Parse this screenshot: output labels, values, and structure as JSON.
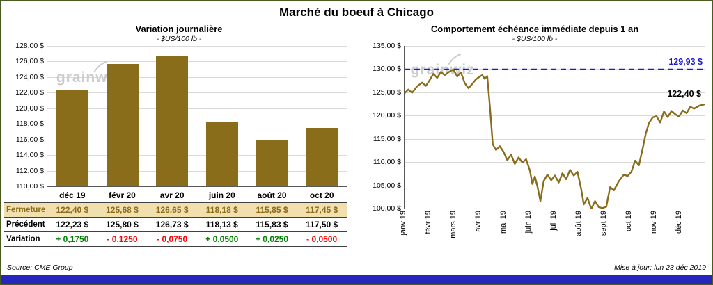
{
  "title": "Marché du boeuf à Chicago",
  "watermark": "grainwiz",
  "colors": {
    "bar": "#8a6d1b",
    "series": "#8a6d1b",
    "reference": "#1a1ad0",
    "positive": "#008000",
    "negative": "#ff0000",
    "fermeture_bg": "#f2dfae",
    "fermeture_text": "#8a6d1b",
    "footer_bar": "#2626be"
  },
  "footer": {
    "source": "Source: CME Group",
    "updated": "Mise à jour: lun 23 déc 2019"
  },
  "chart_data": [
    {
      "type": "bar",
      "title": "Variation journalière",
      "subtitle": "- $US/100 lb -",
      "categories": [
        "déc 19",
        "févr 20",
        "avr 20",
        "juin 20",
        "août 20",
        "oct 20"
      ],
      "values": [
        122.4,
        125.68,
        126.65,
        118.18,
        115.85,
        117.45
      ],
      "ylim": [
        110,
        128
      ],
      "ytick_step": 2,
      "grid": true,
      "table": {
        "rows": [
          {
            "label": "Fermeture",
            "values": [
              "122,40 $",
              "125,68 $",
              "126,65 $",
              "118,18 $",
              "115,85 $",
              "117,45 $"
            ]
          },
          {
            "label": "Précédent",
            "values": [
              "122,23 $",
              "125,80 $",
              "126,73 $",
              "118,13 $",
              "115,83 $",
              "117,50 $"
            ]
          },
          {
            "label": "Variation",
            "values": [
              "+ 0,1750",
              "- 0,1250",
              "- 0,0750",
              "+ 0,0500",
              "+ 0,0250",
              "- 0,0500"
            ]
          }
        ]
      }
    },
    {
      "type": "line",
      "title": "Comportement échéance immédiate depuis 1 an",
      "subtitle": "- $US/100 lb -",
      "x_labels": [
        "janv 19",
        "févr 19",
        "mars 19",
        "avr 19",
        "mai 19",
        "juin 19",
        "juil 19",
        "août 19",
        "sept 19",
        "oct 19",
        "nov 19",
        "déc 19"
      ],
      "ylim": [
        100,
        135
      ],
      "ytick_step": 5,
      "grid": true,
      "reference_line": {
        "value": 129.93,
        "label": "129,93 $"
      },
      "end_label": "122,40 $",
      "points": [
        [
          0,
          124.8
        ],
        [
          0.15,
          125.6
        ],
        [
          0.3,
          124.9
        ],
        [
          0.5,
          126.3
        ],
        [
          0.7,
          127.1
        ],
        [
          0.85,
          126.4
        ],
        [
          1.0,
          127.6
        ],
        [
          1.15,
          129.0
        ],
        [
          1.3,
          128.1
        ],
        [
          1.45,
          129.4
        ],
        [
          1.6,
          128.7
        ],
        [
          1.8,
          129.5
        ],
        [
          1.95,
          129.93
        ],
        [
          2.1,
          128.4
        ],
        [
          2.25,
          129.3
        ],
        [
          2.4,
          127.0
        ],
        [
          2.55,
          125.9
        ],
        [
          2.7,
          126.8
        ],
        [
          2.85,
          127.8
        ],
        [
          3.0,
          128.4
        ],
        [
          3.1,
          128.7
        ],
        [
          3.2,
          127.9
        ],
        [
          3.3,
          128.5
        ],
        [
          3.42,
          121.0
        ],
        [
          3.52,
          113.8
        ],
        [
          3.65,
          112.6
        ],
        [
          3.8,
          113.4
        ],
        [
          3.95,
          112.2
        ],
        [
          4.1,
          110.4
        ],
        [
          4.25,
          111.6
        ],
        [
          4.4,
          109.6
        ],
        [
          4.55,
          111.0
        ],
        [
          4.7,
          109.9
        ],
        [
          4.85,
          110.6
        ],
        [
          5.0,
          108.2
        ],
        [
          5.1,
          105.3
        ],
        [
          5.2,
          106.9
        ],
        [
          5.3,
          104.8
        ],
        [
          5.42,
          101.6
        ],
        [
          5.55,
          105.9
        ],
        [
          5.7,
          107.3
        ],
        [
          5.85,
          106.1
        ],
        [
          6.0,
          107.1
        ],
        [
          6.15,
          105.6
        ],
        [
          6.3,
          107.6
        ],
        [
          6.45,
          106.3
        ],
        [
          6.6,
          108.3
        ],
        [
          6.75,
          107.1
        ],
        [
          6.9,
          107.9
        ],
        [
          7.05,
          104.1
        ],
        [
          7.15,
          100.9
        ],
        [
          7.3,
          102.3
        ],
        [
          7.45,
          99.9
        ],
        [
          7.6,
          101.6
        ],
        [
          7.75,
          100.3
        ],
        [
          7.9,
          100.1
        ],
        [
          8.05,
          100.4
        ],
        [
          8.2,
          104.6
        ],
        [
          8.35,
          103.9
        ],
        [
          8.55,
          105.9
        ],
        [
          8.75,
          107.3
        ],
        [
          8.9,
          107.0
        ],
        [
          9.05,
          107.9
        ],
        [
          9.2,
          110.3
        ],
        [
          9.35,
          109.3
        ],
        [
          9.5,
          112.9
        ],
        [
          9.62,
          116.0
        ],
        [
          9.75,
          118.4
        ],
        [
          9.9,
          119.6
        ],
        [
          10.05,
          119.9
        ],
        [
          10.2,
          118.5
        ],
        [
          10.35,
          120.9
        ],
        [
          10.5,
          119.7
        ],
        [
          10.65,
          121.0
        ],
        [
          10.8,
          120.3
        ],
        [
          10.95,
          119.8
        ],
        [
          11.1,
          121.1
        ],
        [
          11.25,
          120.5
        ],
        [
          11.4,
          121.9
        ],
        [
          11.55,
          121.5
        ],
        [
          11.75,
          122.1
        ],
        [
          11.95,
          122.4
        ]
      ]
    }
  ]
}
